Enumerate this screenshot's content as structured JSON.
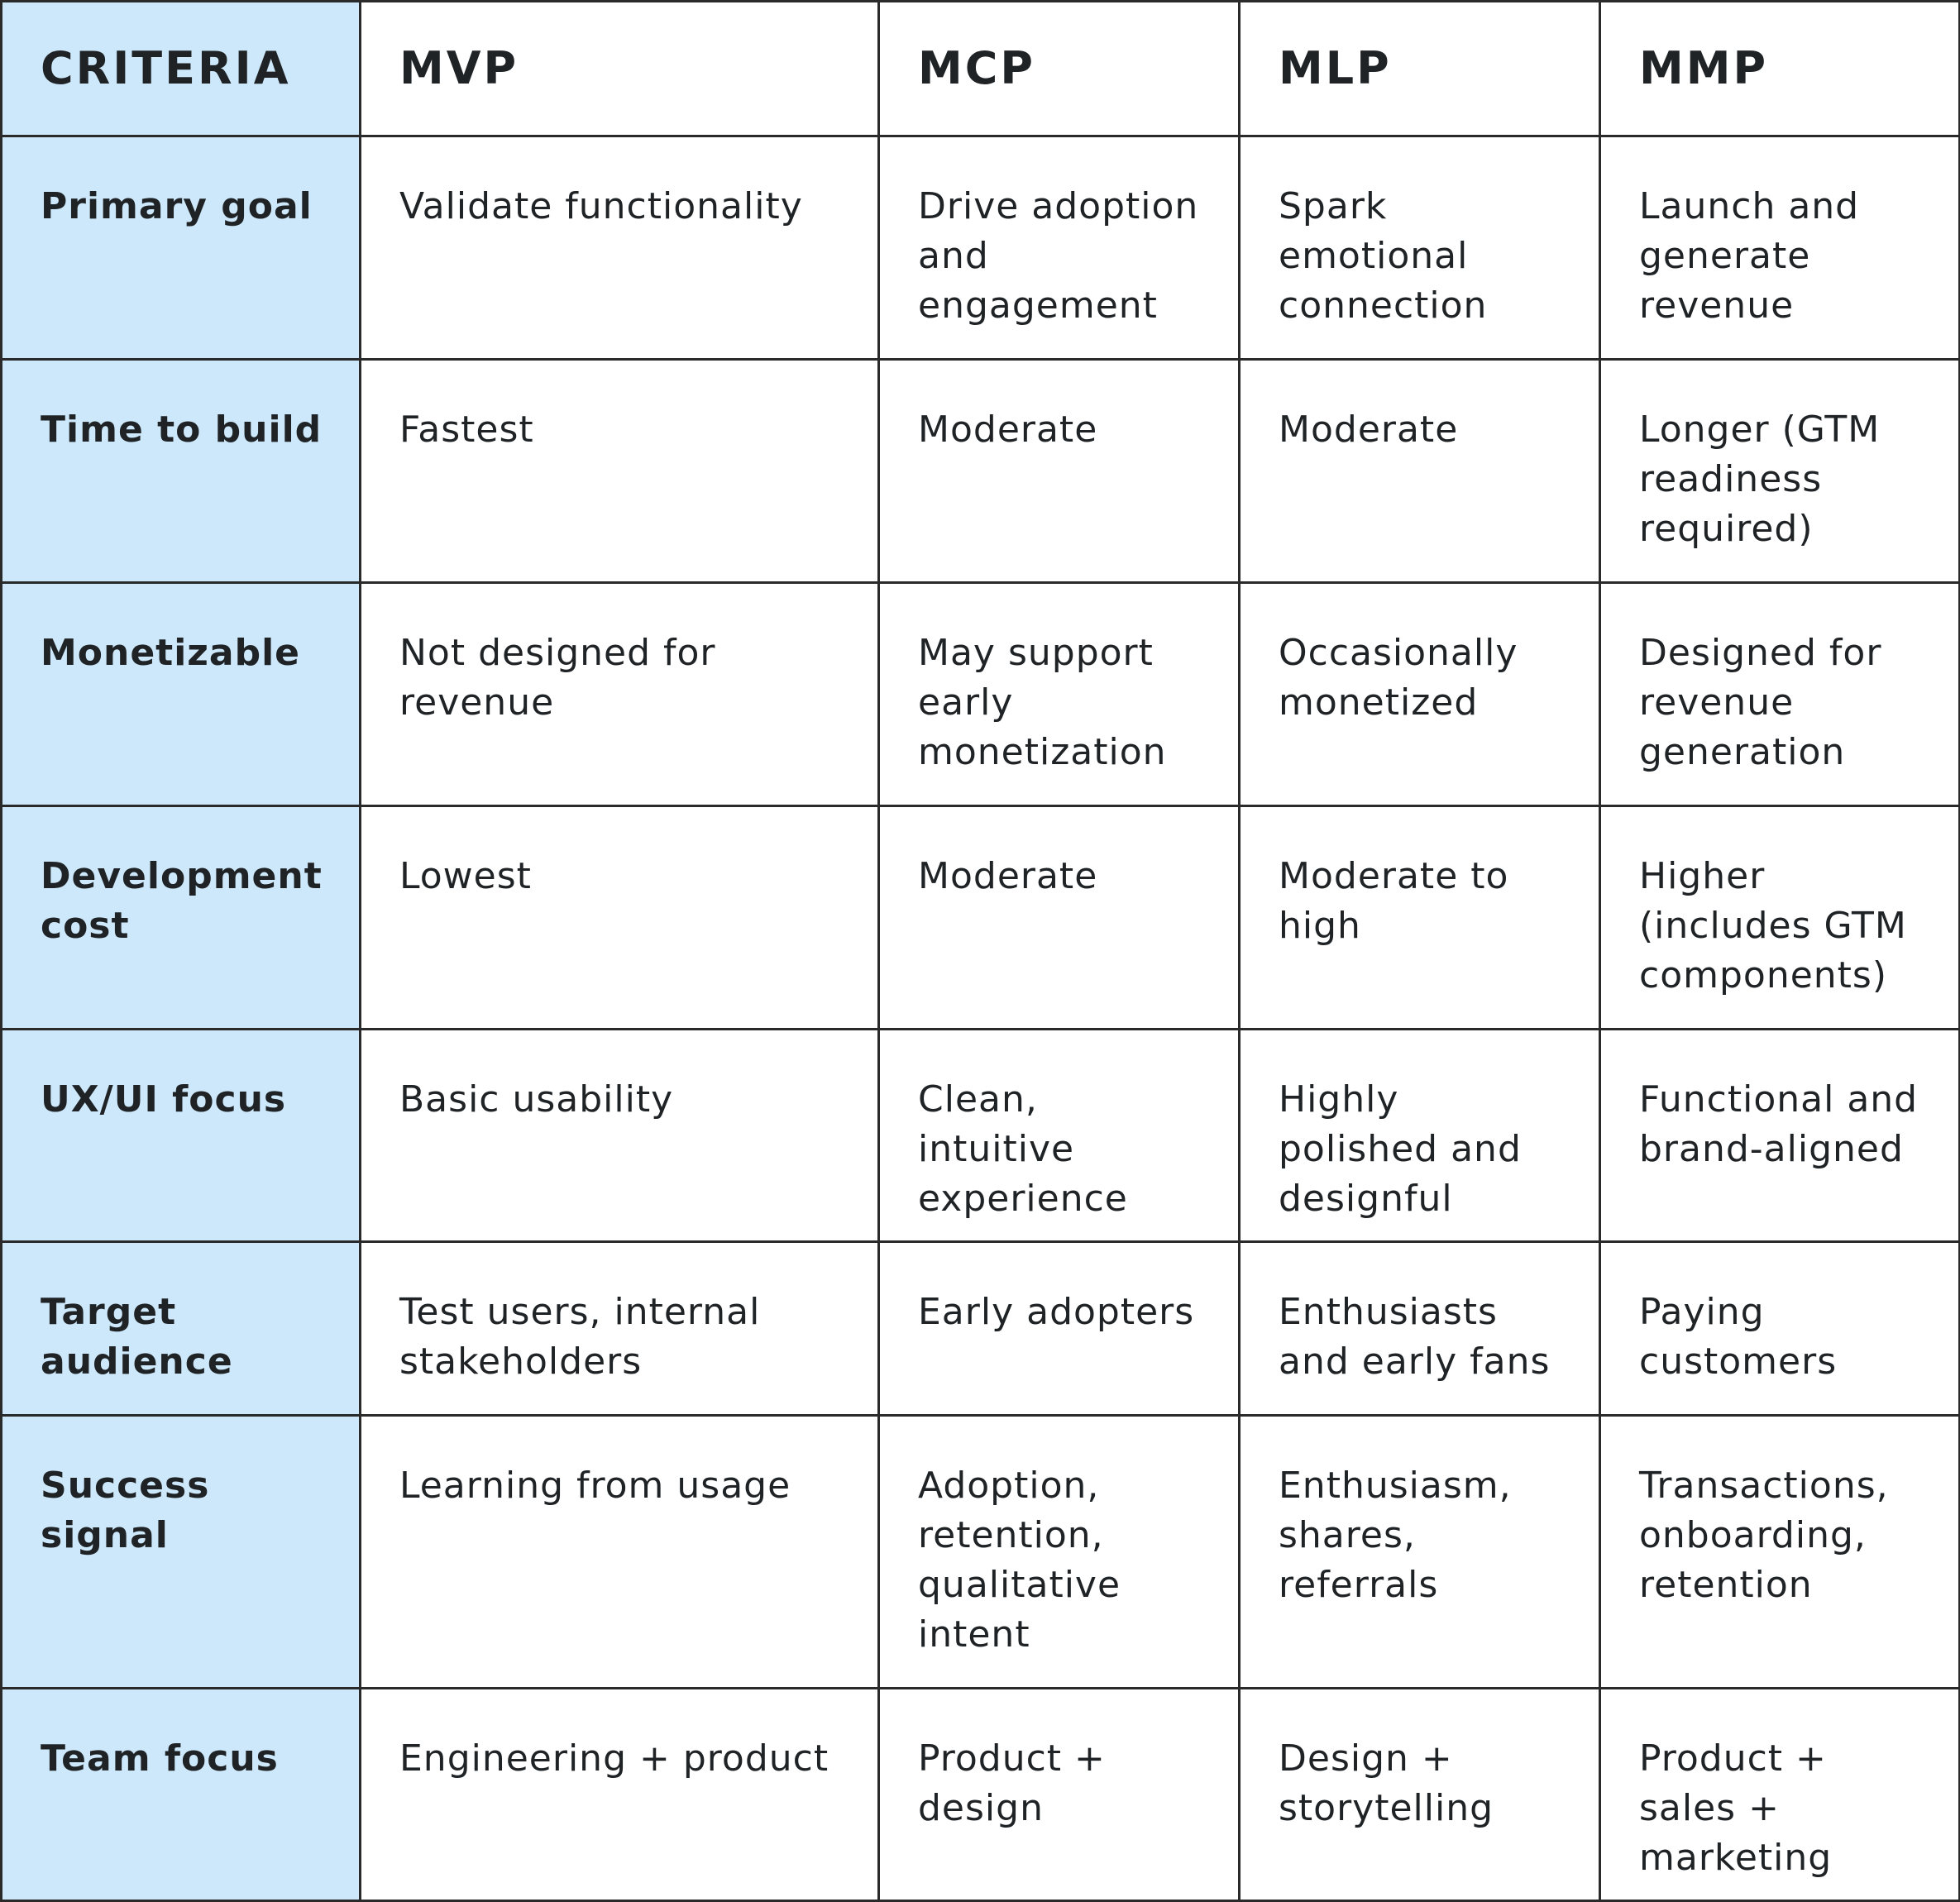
{
  "table": {
    "headers": [
      "CRITERIA",
      "MVP",
      "MCP",
      "MLP",
      "MMP"
    ],
    "rows": [
      {
        "criterion": "Primary goal",
        "mvp": "Validate functionality",
        "mcp": "Drive adoption and engagement",
        "mlp": "Spark emotional connection",
        "mmp": "Launch and generate revenue"
      },
      {
        "criterion": "Time to build",
        "mvp": "Fastest",
        "mcp": "Moderate",
        "mlp": "Moderate",
        "mmp": "Longer (GTM readiness required)"
      },
      {
        "criterion": "Monetizable",
        "mvp": "Not designed for revenue",
        "mcp": "May support early monetization",
        "mlp": "Occasionally monetized",
        "mmp": "Designed for revenue generation"
      },
      {
        "criterion": "Development cost",
        "mvp": "Lowest",
        "mcp": "Moderate",
        "mlp": "Moderate to high",
        "mmp": "Higher (includes GTM components)"
      },
      {
        "criterion": "UX/UI focus",
        "mvp": "Basic usability",
        "mcp": "Clean, intuitive experience",
        "mlp": "Highly polished and designful",
        "mmp": "Functional and brand-aligned"
      },
      {
        "criterion": "Target audience",
        "mvp": "Test users, internal stakeholders",
        "mcp": "Early adopters",
        "mlp": "Enthusiasts and early fans",
        "mmp": "Paying customers"
      },
      {
        "criterion": "Success signal",
        "mvp": "Learning from usage",
        "mcp": "Adoption, retention, qualitative intent",
        "mlp": "Enthusiasm, shares, referrals",
        "mmp": "Transactions, onboarding, retention"
      },
      {
        "criterion": "Team focus",
        "mvp": "Engineering + product",
        "mcp": "Product + design",
        "mlp": "Design + storytelling",
        "mmp": "Product + sales + marketing"
      }
    ]
  },
  "colors": {
    "criteria_background": "#cde8fa",
    "border": "#2a2a2a",
    "text": "#1f2326",
    "background": "#ffffff"
  }
}
